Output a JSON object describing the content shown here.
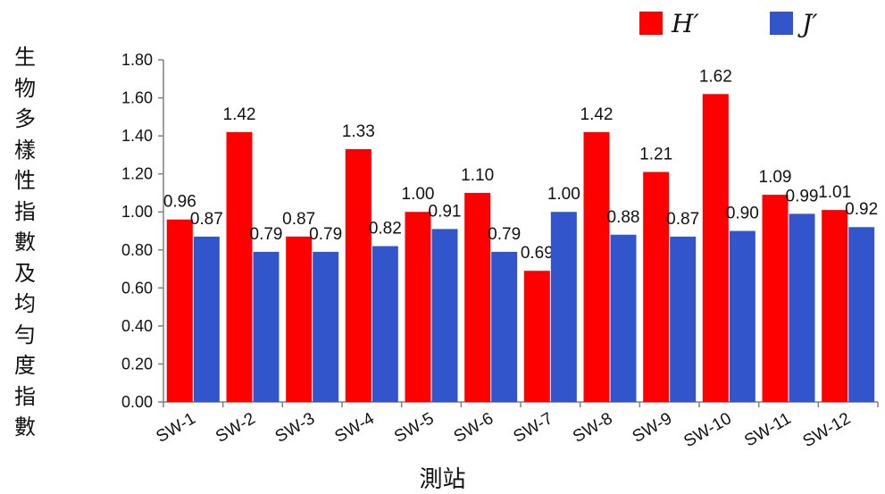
{
  "chart_data": {
    "type": "bar",
    "categories": [
      "SW-1",
      "SW-2",
      "SW-3",
      "SW-4",
      "SW-5",
      "SW-6",
      "SW-7",
      "SW-8",
      "SW-9",
      "SW-10",
      "SW-11",
      "SW-12"
    ],
    "series": [
      {
        "name": "H′",
        "color": "#ff0000",
        "values": [
          0.96,
          1.42,
          0.87,
          1.33,
          1.0,
          1.1,
          0.69,
          1.42,
          1.21,
          1.62,
          1.09,
          1.01
        ],
        "labels": [
          "0.96",
          "1.42",
          "0.87",
          "1.33",
          "1.00",
          "1.10",
          "0.69",
          "1.42",
          "1.21",
          "1.62",
          "1.09",
          "1.01"
        ]
      },
      {
        "name": "J′",
        "color": "#3355cc",
        "values": [
          0.87,
          0.79,
          0.79,
          0.82,
          0.91,
          0.79,
          1.0,
          0.88,
          0.87,
          0.9,
          0.99,
          0.92
        ],
        "labels": [
          "0.87",
          "0.79",
          "0.79",
          "0.82",
          "0.91",
          "0.79",
          "1.00",
          "0.88",
          "0.87",
          "0.90",
          "0.99",
          "0.92"
        ]
      }
    ],
    "ylabel": "生物多樣性指數及均勻度指數",
    "xlabel": "測站",
    "ylim": [
      0,
      1.8
    ],
    "yticks": [
      "0.00",
      "0.20",
      "0.40",
      "0.60",
      "0.80",
      "1.00",
      "1.20",
      "1.40",
      "1.60",
      "1.80"
    ],
    "grid": false,
    "legend_position": "top-right"
  }
}
